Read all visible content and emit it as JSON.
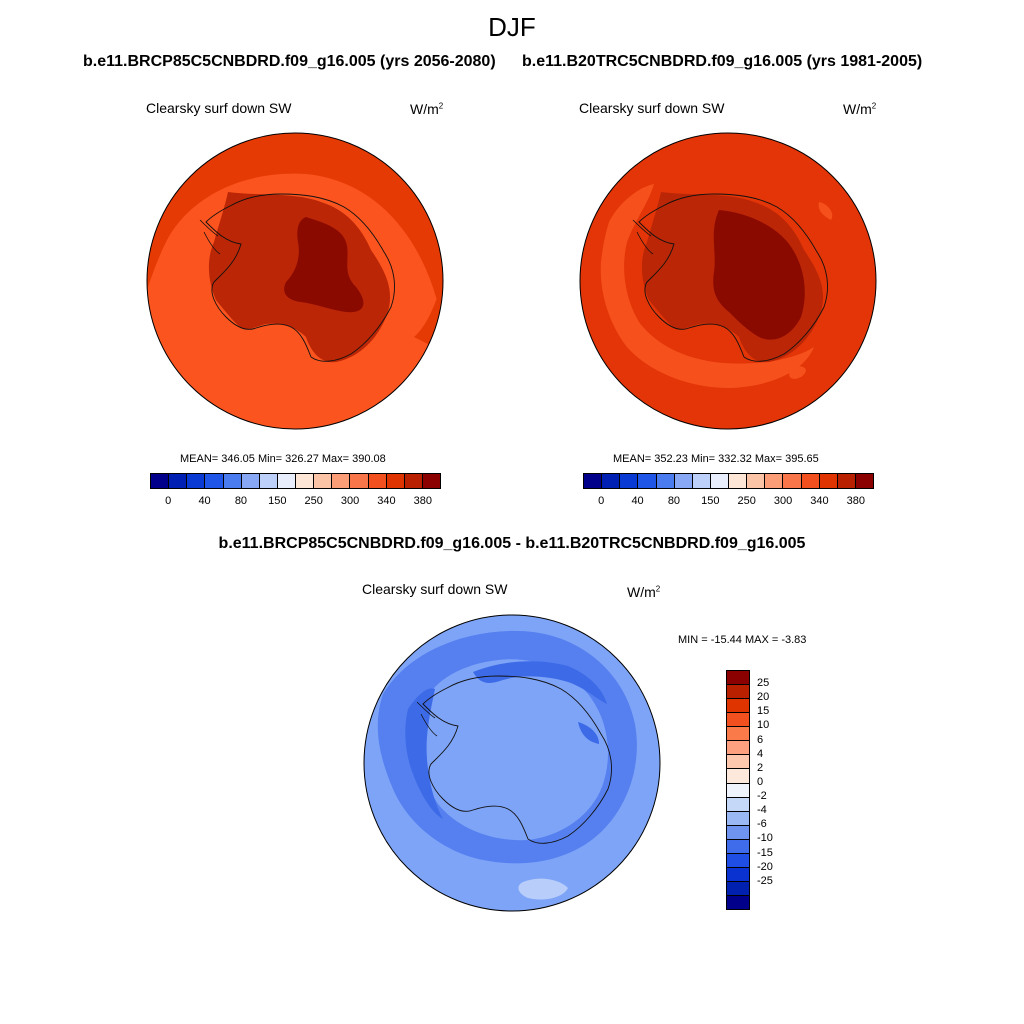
{
  "title": "DJF",
  "panels": {
    "left": {
      "run_title": "b.e11.BRCP85C5CNBDRD.f09_g16.005 (yrs 2056-2080)",
      "variable": "Clearsky surf down SW",
      "units_base": "W/m",
      "units_exp": "2",
      "stats": "MEAN= 346.05  Min= 326.27  Max= 390.08"
    },
    "right": {
      "run_title": "b.e11.B20TRC5CNBDRD.f09_g16.005 (yrs 1981-2005)",
      "variable": "Clearsky surf down SW",
      "units_base": "W/m",
      "units_exp": "2",
      "stats": "MEAN= 352.23  Min= 332.32  Max= 395.65"
    },
    "diff": {
      "run_title": "b.e11.BRCP85C5CNBDRD.f09_g16.005 - b.e11.B20TRC5CNBDRD.f09_g16.005",
      "variable": "Clearsky surf down SW",
      "units_base": "W/m",
      "units_exp": "2",
      "stats": "MIN = -15.44 MAX =  -3.83"
    }
  },
  "colorbar_abs": {
    "colors": [
      "#00008b",
      "#0020b4",
      "#0a3ad4",
      "#1f56e8",
      "#4a7cf0",
      "#88a8f5",
      "#bdd0fa",
      "#e8eefc",
      "#fde6d6",
      "#fcc4a6",
      "#fb9e78",
      "#f8764a",
      "#f35020",
      "#e03400",
      "#b82000",
      "#8b0000"
    ],
    "ticks": [
      "0",
      "40",
      "80",
      "150",
      "250",
      "300",
      "340",
      "380"
    ]
  },
  "colorbar_diff": {
    "colors": [
      "#8b0000",
      "#b82000",
      "#e03400",
      "#f35020",
      "#fb7a4a",
      "#fca080",
      "#fdc8ae",
      "#fde8dc",
      "#eef3fc",
      "#c6d8f8",
      "#9ab8f4",
      "#6e94f0",
      "#3f6cea",
      "#1f4ee4",
      "#0a32d0",
      "#0020b0",
      "#00008b"
    ],
    "ticks": [
      "25",
      "20",
      "15",
      "10",
      "6",
      "4",
      "2",
      "0",
      "-2",
      "-4",
      "-6",
      "-10",
      "-15",
      "-20",
      "-25"
    ]
  },
  "map_colors": {
    "left_ocean": "#fb541e",
    "left_outer": "#e63a05",
    "left_coast": "#bb2606",
    "left_interior": "#8b0a00",
    "right_ocean": "#e33507",
    "right_light": "#f6511d",
    "right_coast": "#bb2606",
    "right_interior": "#8b0a00",
    "diff_base": "#7ea4f7",
    "diff_darker": "#5680ef",
    "diff_dark": "#3d6be8",
    "diff_pale": "#b8cdfa"
  }
}
